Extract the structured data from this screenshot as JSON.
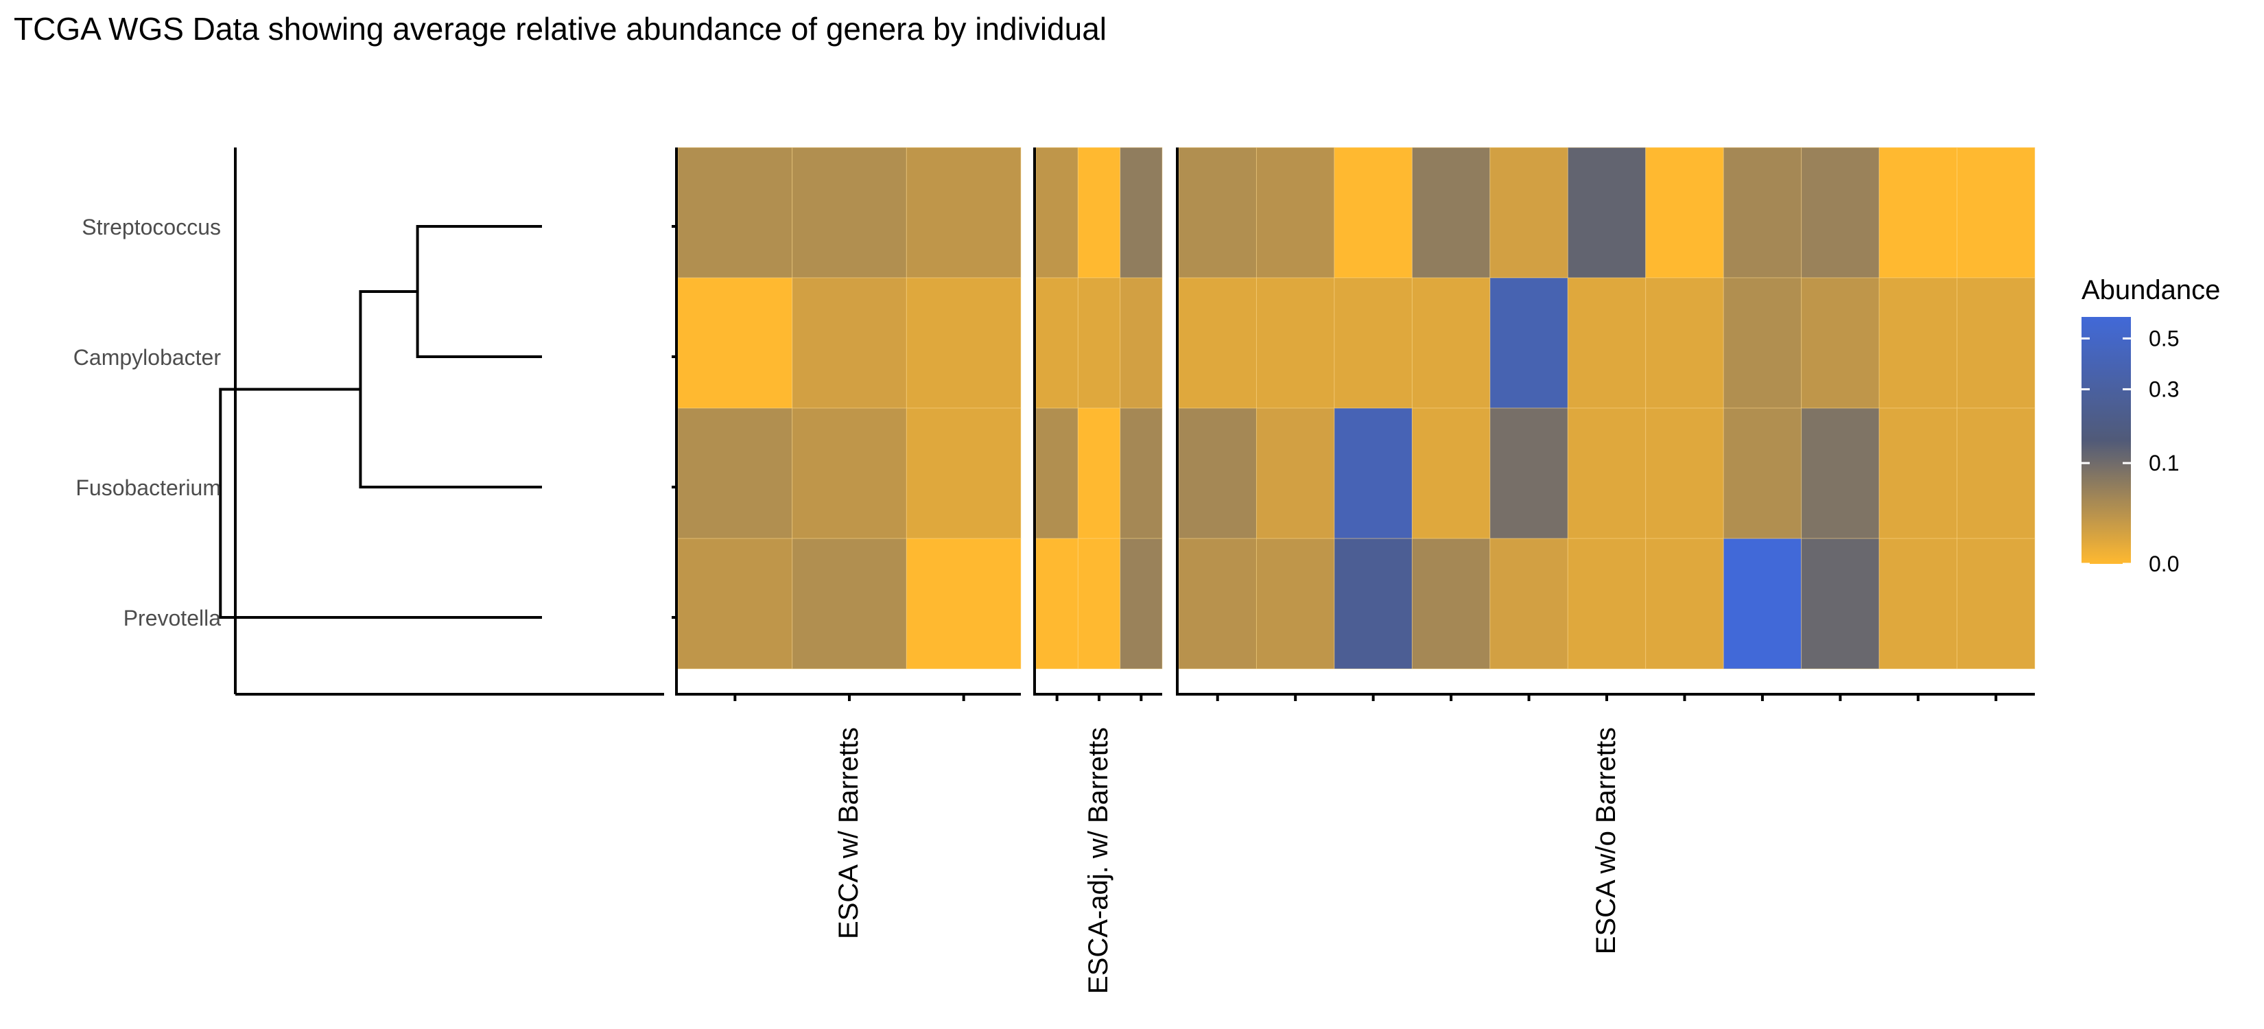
{
  "chart_data": {
    "type": "heatmap",
    "title": "TCGA WGS Data showing average relative abundance of genera by individual",
    "rows": [
      "Streptococcus",
      "Campylobacter",
      "Fusobacterium",
      "Prevotella"
    ],
    "groups": [
      {
        "label": "ESCA w/ Barretts",
        "n": 3,
        "values": [
          [
            0.03,
            0.03,
            0.02
          ],
          [
            0.0,
            0.01,
            0.005
          ],
          [
            0.03,
            0.02,
            0.005
          ],
          [
            0.02,
            0.03,
            0.0
          ]
        ]
      },
      {
        "label": "ESCA-adj. w/ Barretts",
        "n": 3,
        "values": [
          [
            0.02,
            0.0,
            0.06
          ],
          [
            0.005,
            0.005,
            0.01
          ],
          [
            0.03,
            0.0,
            0.04
          ],
          [
            0.0,
            0.0,
            0.05
          ]
        ]
      },
      {
        "label": "ESCA w/o Barretts",
        "n": 11,
        "values": [
          [
            0.03,
            0.025,
            0.0,
            0.06,
            0.01,
            0.12,
            0.0,
            0.04,
            0.05,
            0.0,
            0.0
          ],
          [
            0.005,
            0.005,
            0.005,
            0.005,
            0.38,
            0.005,
            0.005,
            0.03,
            0.02,
            0.005,
            0.005
          ],
          [
            0.04,
            0.01,
            0.4,
            0.005,
            0.09,
            0.005,
            0.005,
            0.03,
            0.08,
            0.005,
            0.005
          ],
          [
            0.025,
            0.02,
            0.25,
            0.04,
            0.01,
            0.005,
            0.005,
            0.6,
            0.11,
            0.005,
            0.005
          ]
        ]
      }
    ],
    "dendrogram": {
      "merges": [
        {
          "left": "Streptococcus",
          "right": "Campylobacter",
          "height": 0.24
        },
        {
          "left": "merge1",
          "right": "Fusobacterium",
          "height": 0.35
        },
        {
          "left": "merge2",
          "right": "Prevotella",
          "height": 0.62
        }
      ]
    },
    "legend": {
      "title": "Abundance",
      "position": "right",
      "breaks": [
        0.5,
        0.3,
        0.1,
        0.0
      ],
      "break_labels": [
        "0.5",
        "0.3",
        "0.1",
        "0.0"
      ],
      "range": [
        0,
        0.6
      ]
    },
    "colors": {
      "low": "#FFB930",
      "mid": "#505A78",
      "high": "#4169D8",
      "grid": "#FFD98A"
    },
    "grid": false
  }
}
